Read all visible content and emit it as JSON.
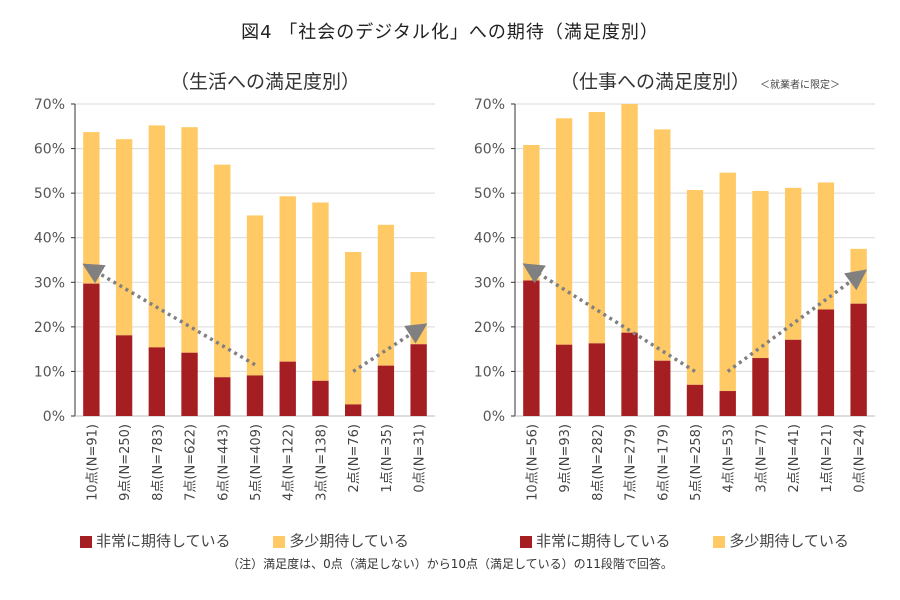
{
  "title": "図4 「社会のデジタル化」への期待（満足度別）",
  "note": "（注）満足度は、0点（満足しない）から10点（満足している）の11段階で回答。",
  "colors": {
    "very": "#A51F22",
    "some": "#FFCA65",
    "arrow": "#808080",
    "grid": "#d9d9d9"
  },
  "chart_data": [
    {
      "type": "bar",
      "stacked": true,
      "title": "（生活への満足度別）",
      "subtitle": "",
      "ylim": [
        0,
        70
      ],
      "yticks": [
        "0%",
        "10%",
        "20%",
        "30%",
        "40%",
        "50%",
        "60%",
        "70%"
      ],
      "grid": true,
      "legend": "bottom",
      "categories": [
        "10点(N=91)",
        "9点(N=250)",
        "8点(N=783)",
        "7点(N=622)",
        "6点(N=443)",
        "5点(N=409)",
        "4点(N=122)",
        "3点(N=138)",
        "2点(N=76)",
        "1点(N=35)",
        "0点(N=31)"
      ],
      "series": [
        {
          "name": "非常に期待している",
          "values": [
            29.7,
            18.1,
            15.4,
            14.2,
            8.7,
            9.1,
            12.2,
            7.9,
            2.6,
            11.3,
            16.1
          ]
        },
        {
          "name": "多少期待している",
          "values": [
            34.0,
            44.0,
            49.8,
            50.6,
            47.7,
            35.9,
            37.1,
            40.0,
            34.2,
            31.6,
            16.2
          ]
        }
      ],
      "annotations": [
        {
          "type": "arrow",
          "from": [
            5,
            11.5
          ],
          "to": [
            0,
            33
          ]
        },
        {
          "type": "arrow",
          "from": [
            8,
            10
          ],
          "to": [
            10,
            19.5
          ]
        }
      ]
    },
    {
      "type": "bar",
      "stacked": true,
      "title": "（仕事への満足度別）",
      "subtitle": "＜就業者に限定＞",
      "ylim": [
        0,
        70
      ],
      "yticks": [
        "0%",
        "10%",
        "20%",
        "30%",
        "40%",
        "50%",
        "60%",
        "70%"
      ],
      "grid": true,
      "legend": "bottom",
      "categories": [
        "10点(N=56)",
        "9点(N=93)",
        "8点(N=282)",
        "7点(N=279)",
        "6点(N=179)",
        "5点(N=258)",
        "4点(N=53)",
        "3点(N=77)",
        "2点(N=41)",
        "1点(N=21)",
        "0点(N=24)"
      ],
      "series": [
        {
          "name": "非常に期待している",
          "values": [
            30.4,
            16.0,
            16.3,
            18.7,
            12.4,
            7.0,
            5.6,
            13.0,
            17.1,
            23.9,
            25.2
          ]
        },
        {
          "name": "多少期待している",
          "values": [
            30.4,
            50.8,
            51.9,
            51.3,
            51.9,
            43.7,
            49.0,
            37.5,
            34.1,
            28.5,
            12.3
          ]
        }
      ],
      "annotations": [
        {
          "type": "arrow",
          "from": [
            5,
            10
          ],
          "to": [
            0,
            33
          ]
        },
        {
          "type": "arrow",
          "from": [
            6,
            10
          ],
          "to": [
            10,
            31.5
          ]
        }
      ]
    }
  ]
}
